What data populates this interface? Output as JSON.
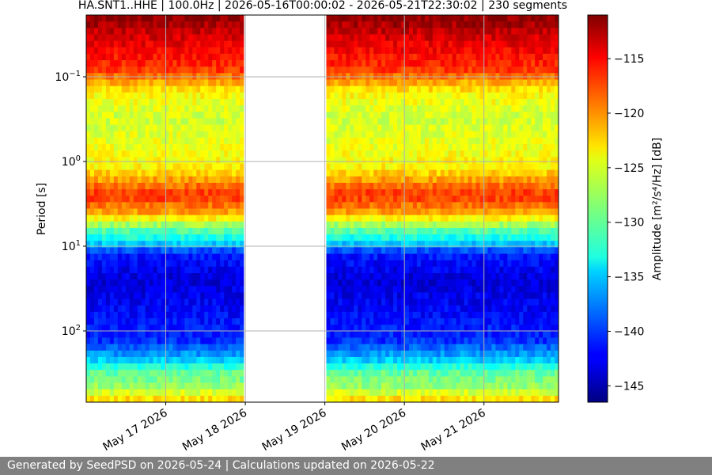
{
  "chart_data": {
    "type": "heatmap",
    "title": "HA.SNT1..HHE | 100.0Hz | 2026-05-16T00:00:02 - 2026-05-21T22:30:02 | 230 segments",
    "ylabel": "Period [s]",
    "yscale": "log",
    "y_inverted": true,
    "ylim_period_s": [
      0.02,
      700
    ],
    "y_ticks": [
      {
        "value": 0.1,
        "base": "10",
        "exp": "−1"
      },
      {
        "value": 1,
        "base": "10",
        "exp": "0"
      },
      {
        "value": 10,
        "base": "10",
        "exp": "1"
      },
      {
        "value": 100,
        "base": "10",
        "exp": "2"
      }
    ],
    "x_ticks": [
      "May 17 2026",
      "May 18 2026",
      "May 19 2026",
      "May 20 2026",
      "May 21 2026"
    ],
    "x_range": [
      "2026-05-16T00:00:02",
      "2026-05-21T22:30:02"
    ],
    "grid": true,
    "data_gaps": [
      {
        "start": "2026-05-16T23:50",
        "end": "2026-05-17T00:10"
      },
      {
        "start": "2026-05-18T00:00",
        "end": "2026-05-19T00:00"
      },
      {
        "start": "2026-05-19T23:50",
        "end": "2026-05-20T00:10"
      },
      {
        "start": "2026-05-20T23:50",
        "end": "2026-05-21T00:10"
      }
    ],
    "colorbar": {
      "label": "Amplitude [m²/s⁴/Hz] [dB]",
      "colormap": "jet",
      "range": [
        -146.5,
        -111
      ],
      "ticks": [
        "−115",
        "−120",
        "−125",
        "−130",
        "−135",
        "−140",
        "−145"
      ],
      "tick_values": [
        -115,
        -120,
        -125,
        -130,
        -135,
        -140,
        -145
      ]
    },
    "amplitude_profile_by_period_db": [
      {
        "period_s": 0.02,
        "db": -111.5
      },
      {
        "period_s": 0.03,
        "db": -113.5
      },
      {
        "period_s": 0.05,
        "db": -115.5
      },
      {
        "period_s": 0.08,
        "db": -117
      },
      {
        "period_s": 0.15,
        "db": -124
      },
      {
        "period_s": 0.3,
        "db": -126
      },
      {
        "period_s": 0.6,
        "db": -125
      },
      {
        "period_s": 1.2,
        "db": -124
      },
      {
        "period_s": 1.8,
        "db": -120
      },
      {
        "period_s": 2.5,
        "db": -117
      },
      {
        "period_s": 4,
        "db": -121
      },
      {
        "period_s": 6,
        "db": -129
      },
      {
        "period_s": 9,
        "db": -134
      },
      {
        "period_s": 12,
        "db": -141
      },
      {
        "period_s": 25,
        "db": -143.5
      },
      {
        "period_s": 60,
        "db": -142
      },
      {
        "period_s": 130,
        "db": -140.5
      },
      {
        "period_s": 220,
        "db": -135
      },
      {
        "period_s": 300,
        "db": -130
      },
      {
        "period_s": 450,
        "db": -128
      },
      {
        "period_s": 700,
        "db": -122
      }
    ]
  },
  "footer": {
    "text": "Generated by SeedPSD on 2026-05-24 | Calculations updated on 2026-05-22"
  }
}
